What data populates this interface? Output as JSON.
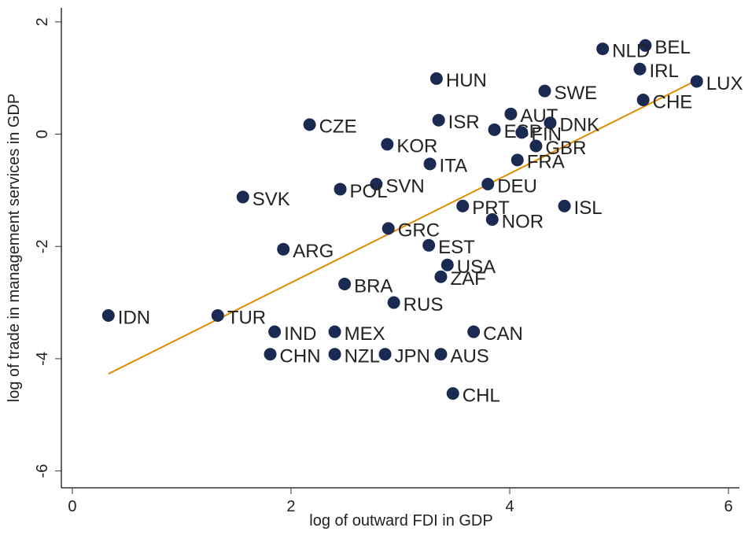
{
  "chart_data": {
    "type": "scatter",
    "xlabel": "log of outward FDI in GDP",
    "ylabel": "log of trade in management services in GDP",
    "labels": [
      "BEL",
      "NLD",
      "IRL",
      "LUX",
      "HUN",
      "SWE",
      "CHE",
      "AUT",
      "ISR",
      "CZE",
      "DNK",
      "ESP",
      "FIN",
      "KOR",
      "GBR",
      "ITA",
      "FRA",
      "SVN",
      "POL",
      "DEU",
      "SVK",
      "ISL",
      "PRT",
      "NOR",
      "GRC",
      "ARG",
      "EST",
      "USA",
      "ZAF",
      "BRA",
      "RUS",
      "IDN",
      "TUR",
      "IND",
      "MEX",
      "CAN",
      "CHN",
      "NZL",
      "JPN",
      "AUS",
      "CHL"
    ],
    "x": [
      5.24,
      4.85,
      5.19,
      5.71,
      3.33,
      4.32,
      5.22,
      4.01,
      3.35,
      2.17,
      4.37,
      3.86,
      4.11,
      2.88,
      4.24,
      3.27,
      4.07,
      2.78,
      2.45,
      3.8,
      1.56,
      4.5,
      3.57,
      3.84,
      2.89,
      1.93,
      3.26,
      3.43,
      3.37,
      2.49,
      2.94,
      0.33,
      1.33,
      1.85,
      2.4,
      3.67,
      1.81,
      2.4,
      2.86,
      3.37,
      3.48
    ],
    "values": [
      1.58,
      1.52,
      1.16,
      0.94,
      0.99,
      0.77,
      0.61,
      0.36,
      0.25,
      0.17,
      0.2,
      0.08,
      0.03,
      -0.18,
      -0.21,
      -0.53,
      -0.46,
      -0.89,
      -0.98,
      -0.89,
      -1.12,
      -1.28,
      -1.28,
      -1.52,
      -1.68,
      -2.05,
      -1.98,
      -2.33,
      -2.54,
      -2.67,
      -3.0,
      -3.23,
      -3.23,
      -3.52,
      -3.52,
      -3.52,
      -3.92,
      -3.92,
      -3.92,
      -3.92,
      -4.62
    ],
    "color": "#1a2a52",
    "fit": {
      "x": [
        0.33,
        5.71
      ],
      "values": [
        -4.27,
        0.96
      ],
      "color": "#e08c00"
    },
    "xlim": [
      -0.1,
      6.1
    ],
    "ylim": [
      -6.3,
      2.25
    ],
    "xticks": [
      0,
      2,
      4,
      6
    ],
    "yticks": [
      -6,
      -4,
      -2,
      0,
      2
    ]
  }
}
